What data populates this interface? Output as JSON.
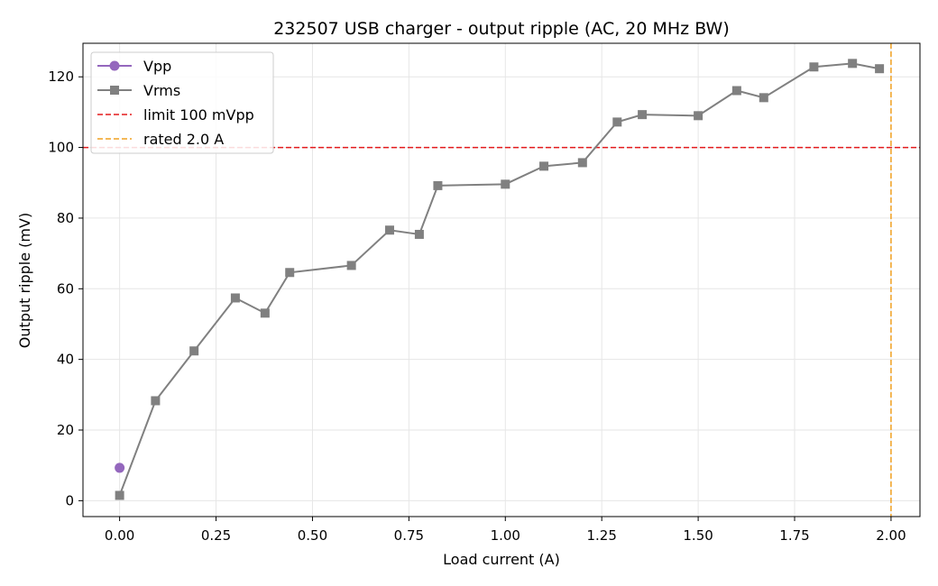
{
  "chart_data": {
    "type": "line",
    "title": "232507 USB charger - output ripple (AC, 20 MHz BW)",
    "xlabel": "Load current (A)",
    "ylabel": "Output ripple (mV)",
    "xlim": [
      -0.095,
      2.075
    ],
    "ylim": [
      -4.5,
      129.5
    ],
    "xticks": [
      0.0,
      0.25,
      0.5,
      0.75,
      1.0,
      1.25,
      1.5,
      1.75,
      2.0
    ],
    "xtick_labels": [
      "0.00",
      "0.25",
      "0.50",
      "0.75",
      "1.00",
      "1.25",
      "1.50",
      "1.75",
      "2.00"
    ],
    "yticks": [
      0,
      20,
      40,
      60,
      80,
      100,
      120
    ],
    "ytick_labels": [
      "0",
      "20",
      "40",
      "60",
      "80",
      "100",
      "120"
    ],
    "grid": true,
    "legend_position": "top-left",
    "series": [
      {
        "name": "Vpp",
        "color": "#9467bd",
        "marker": "circle",
        "x": [
          0.0
        ],
        "y": [
          9.3
        ]
      },
      {
        "name": "Vrms",
        "color": "#808080",
        "marker": "square",
        "x": [
          0.0,
          0.093,
          0.193,
          0.3,
          0.377,
          0.441,
          0.601,
          0.7,
          0.777,
          0.825,
          1.0,
          1.1,
          1.2,
          1.29,
          1.355,
          1.5,
          1.6,
          1.67,
          1.8,
          1.9,
          1.97
        ],
        "y": [
          1.5,
          28.3,
          42.4,
          57.4,
          53.1,
          64.6,
          66.6,
          76.6,
          75.4,
          89.2,
          89.6,
          94.7,
          95.7,
          107.2,
          109.3,
          109.0,
          116.1,
          114.1,
          122.8,
          123.8,
          122.3
        ]
      }
    ],
    "reference_lines": [
      {
        "name": "limit 100 mVpp",
        "orientation": "horizontal",
        "value": 100,
        "color": "#e31a1c",
        "style": "dashed"
      },
      {
        "name": "rated 2.0 A",
        "orientation": "vertical",
        "value": 2.0,
        "color": "#f0a020",
        "style": "dashed"
      }
    ]
  }
}
